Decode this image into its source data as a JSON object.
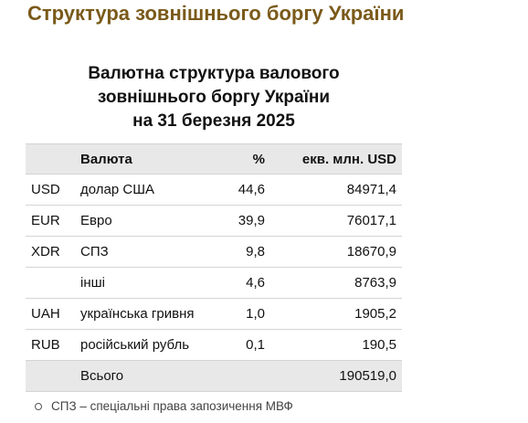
{
  "page": {
    "title": "Структура зовнішнього боргу України"
  },
  "table": {
    "caption": [
      "Валютна структура валового",
      "зовнішнього боргу України",
      "на 31 березня 2025"
    ],
    "headers": {
      "code": "",
      "currency": "Валюта",
      "percent": "%",
      "usd": "екв. млн. USD"
    },
    "rows": [
      {
        "code": "USD",
        "name": "долар США",
        "percent": "44,6",
        "usd": "84971,4"
      },
      {
        "code": "EUR",
        "name": "Евро",
        "percent": "39,9",
        "usd": "76017,1"
      },
      {
        "code": "XDR",
        "name": "СПЗ",
        "percent": "9,8",
        "usd": "18670,9"
      },
      {
        "code": "",
        "name": "інші",
        "percent": "4,6",
        "usd": "8763,9"
      },
      {
        "code": "UAH",
        "name": "українська гривня",
        "percent": "1,0",
        "usd": "1905,2"
      },
      {
        "code": "RUB",
        "name": "російський рубль",
        "percent": "0,1",
        "usd": "190,5"
      }
    ],
    "total": {
      "code": "",
      "name": "Всього",
      "percent": "",
      "usd": "190519,0"
    }
  },
  "footnote": {
    "text": "СПЗ – спеціальні права запозичення МВФ"
  }
}
